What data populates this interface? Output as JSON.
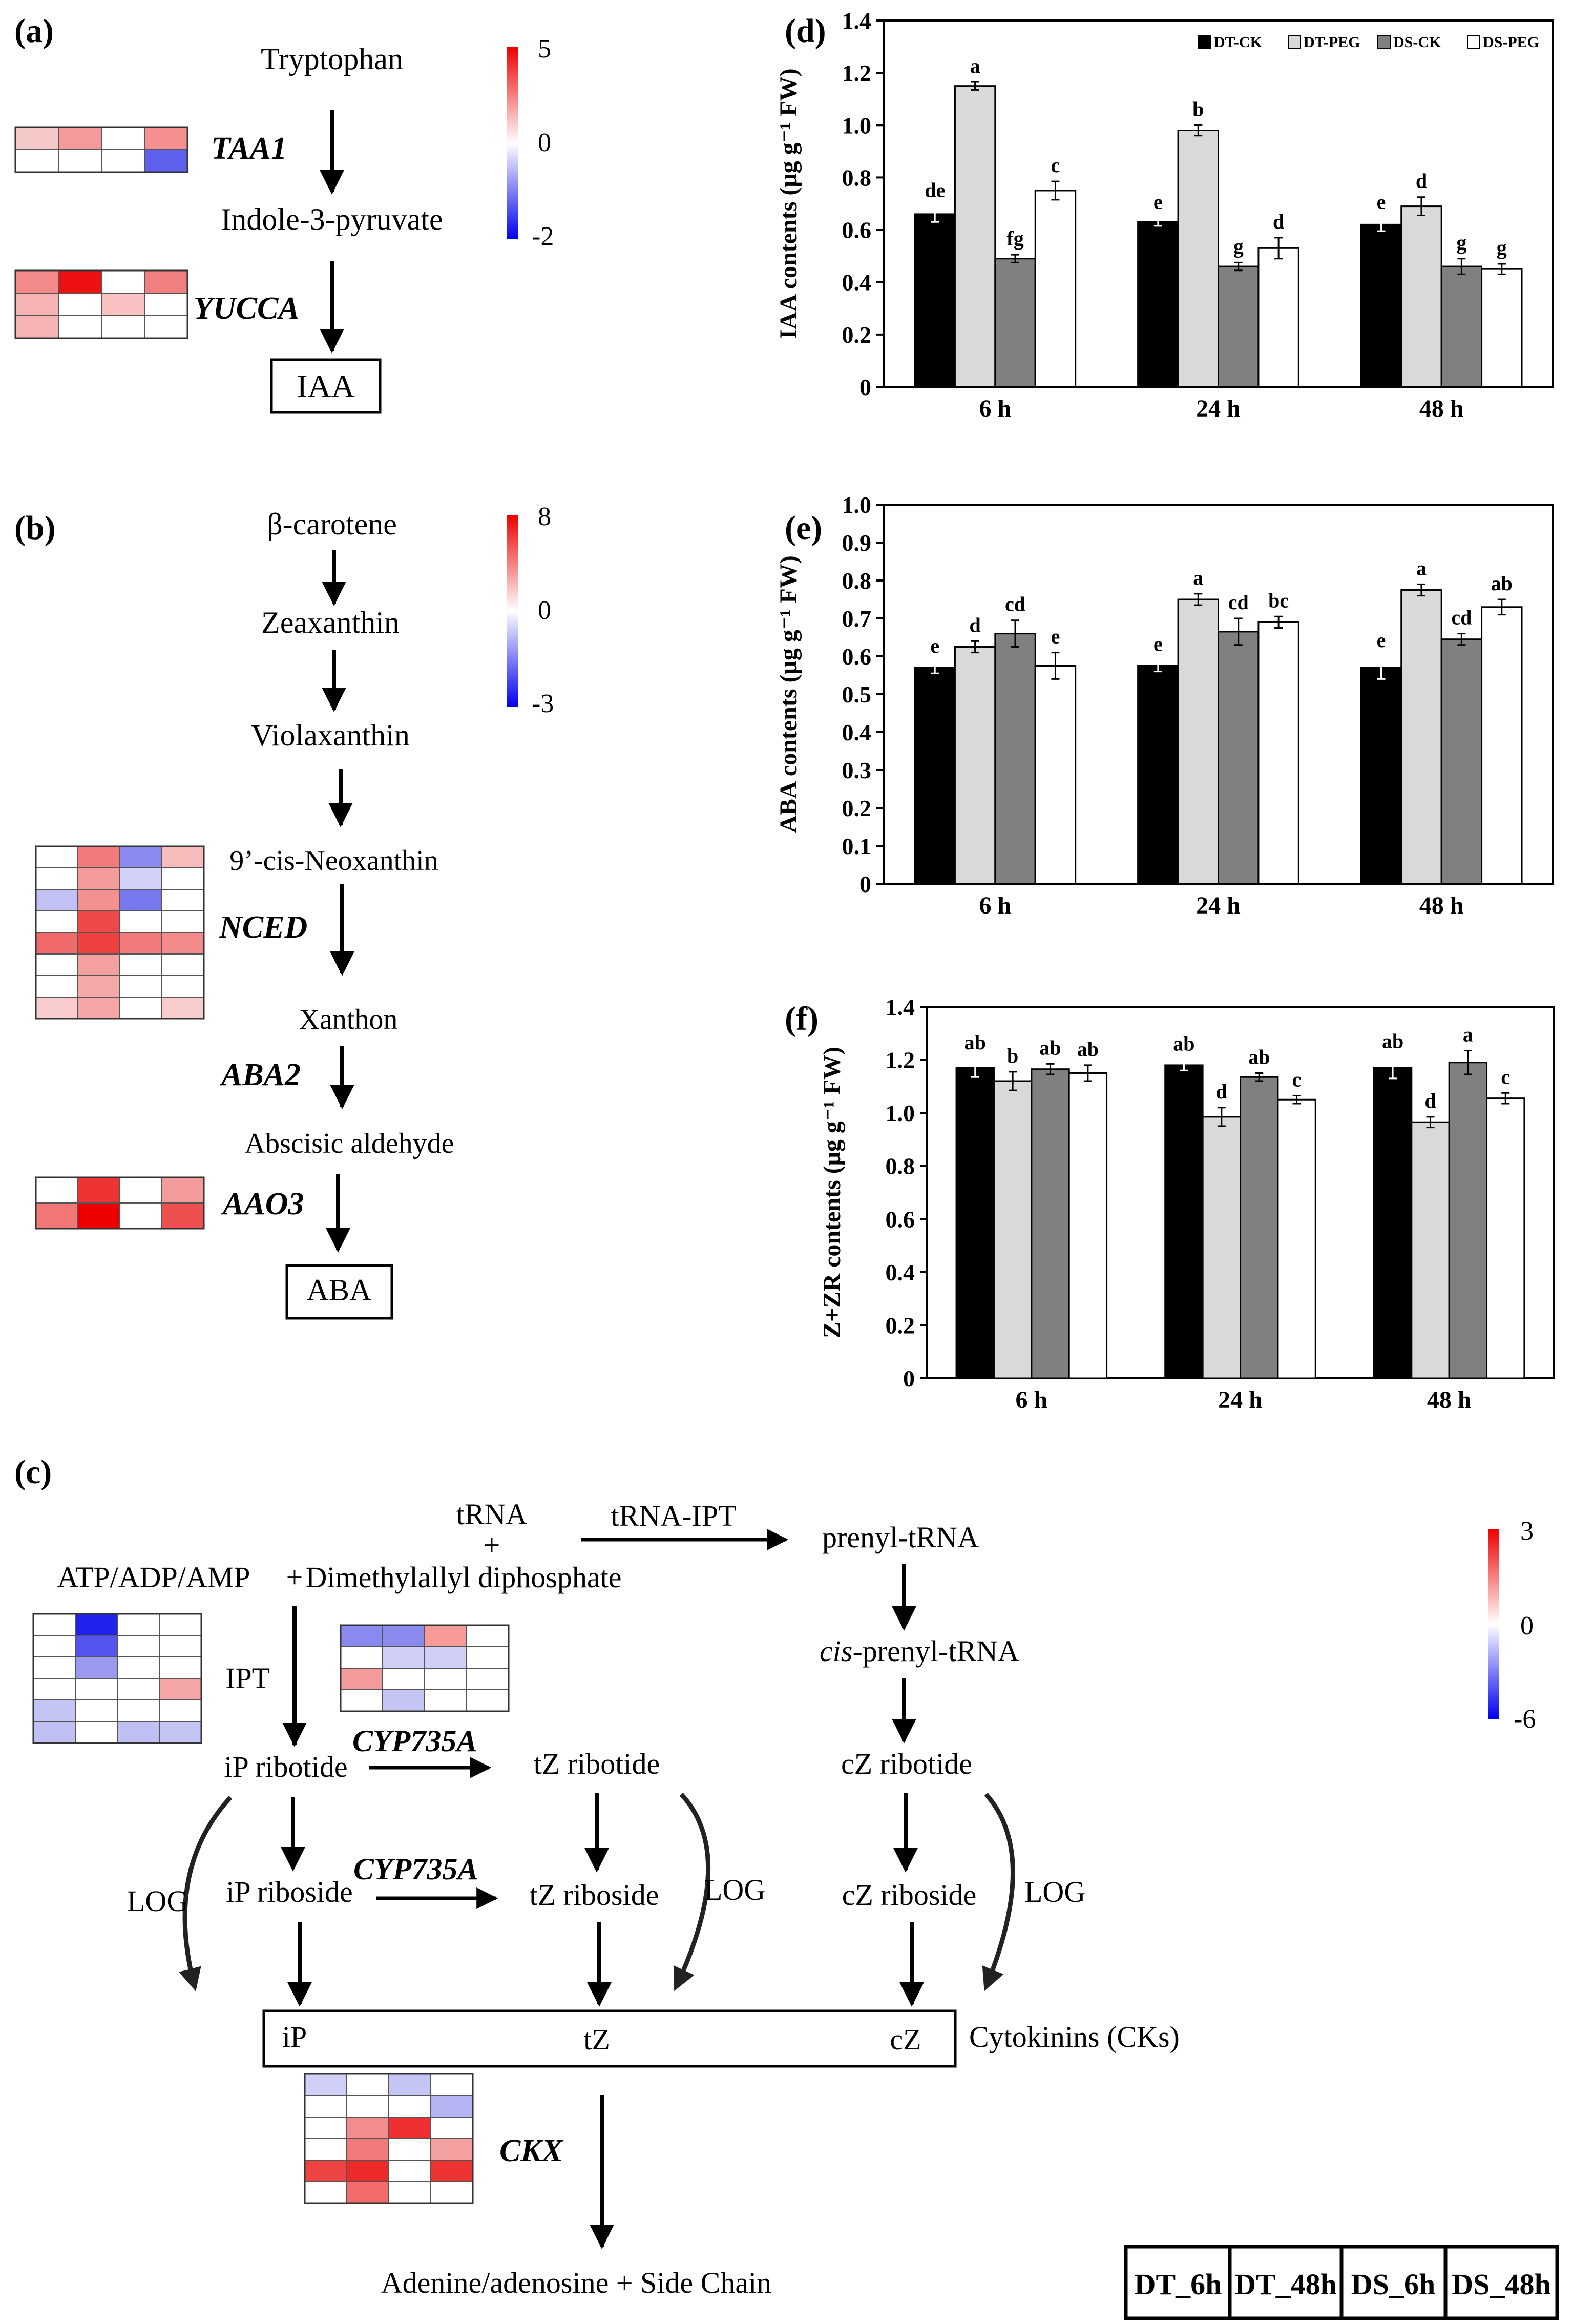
{
  "panels": {
    "a": {
      "label": "(a)",
      "nodes": [
        "Tryptophan",
        "Indole-3-pyruvate",
        "IAA"
      ],
      "genes": [
        "TAA1",
        "YUCCA"
      ],
      "scale": {
        "max": "5",
        "mid": "0",
        "min": "-2"
      },
      "heatmaps": {
        "TAA1": [
          [
            "#f7c8c8",
            "#f49a9a",
            "#ffffff",
            "#f49090"
          ],
          [
            "#ffffff",
            "#ffffff",
            "#ffffff",
            "#6060ee"
          ]
        ],
        "YUCCA": [
          [
            "#f28a8a",
            "#ee1111",
            "#ffffff",
            "#f27f7f"
          ],
          [
            "#f6b3b3",
            "#ffffff",
            "#f8c2c2",
            "#ffffff"
          ],
          [
            "#f6b3b3",
            "#ffffff",
            "#ffffff",
            "#ffffff"
          ]
        ]
      }
    },
    "b": {
      "label": "(b)",
      "nodes": [
        "β-carotene",
        "Zeaxanthin",
        "Violaxanthin",
        "9’-cis-Neoxanthin",
        "Xanthon",
        "Abscisic aldehyde",
        "ABA"
      ],
      "genes": [
        "NCED",
        "ABA2",
        "AAO3"
      ],
      "scale": {
        "max": "8",
        "mid": "0",
        "min": "-3"
      },
      "heatmaps": {
        "NCED": [
          [
            "#ffffff",
            "#f27a7a",
            "#8b8bef",
            "#f6bcbc"
          ],
          [
            "#ffffff",
            "#f59a9a",
            "#d2d2f8",
            "#ffffff"
          ],
          [
            "#c1c1f5",
            "#f39090",
            "#7777ee",
            "#ffffff"
          ],
          [
            "#ffffff",
            "#ee4a4a",
            "#ffffff",
            "#ffffff"
          ],
          [
            "#f06a6a",
            "#ee4040",
            "#f27a7a",
            "#f28a8a"
          ],
          [
            "#ffffff",
            "#f4a0a0",
            "#ffffff",
            "#ffffff"
          ],
          [
            "#ffffff",
            "#f4a8a8",
            "#ffffff",
            "#ffffff"
          ],
          [
            "#f8cccc",
            "#f5a5a5",
            "#ffffff",
            "#f8cccc"
          ]
        ],
        "AAO3": [
          [
            "#ffffff",
            "#ee3333",
            "#ffffff",
            "#f49c9c"
          ],
          [
            "#f27777",
            "#ee0000",
            "#ffffff",
            "#ee5050"
          ]
        ]
      }
    },
    "c": {
      "label": "(c)",
      "nodes": {
        "trna": "tRNA",
        "plus": "+",
        "dmapp": "Dimethylallyl diphosphate",
        "atp": "ATP/ADP/AMP",
        "plus2": "+",
        "trna_ipt": "tRNA-IPT",
        "prenyl": "prenyl-tRNA",
        "cis_prefix": "cis",
        "cis_rest": "-prenyl-tRNA",
        "ip_ribotide": "iP ribotide",
        "tz_ribotide": "tZ ribotide",
        "cz_ribotide": "cZ ribotide",
        "ip_riboside": "iP riboside",
        "tz_riboside": "tZ riboside",
        "cz_riboside": "cZ riboside",
        "ip": "iP",
        "tz": "tZ",
        "cz": "cZ",
        "cks": "Cytokinins (CKs)",
        "adenine": "Adenine/adenosine + Side Chain"
      },
      "genes": {
        "ipt": "IPT",
        "cyp1": "CYP735A",
        "cyp2": "CYP735A",
        "log": "LOG",
        "ckx": "CKX"
      },
      "scale": {
        "max": "3",
        "mid": "0",
        "min": "-6"
      },
      "legend_cols": [
        "DT_6h",
        "DT_48h",
        "DS_6h",
        "DS_48h"
      ],
      "heatmaps": {
        "IPT": [
          [
            "#ffffff",
            "#2222ee",
            "#ffffff",
            "#ffffff"
          ],
          [
            "#ffffff",
            "#5555ee",
            "#ffffff",
            "#ffffff"
          ],
          [
            "#ffffff",
            "#9a9af0",
            "#ffffff",
            "#ffffff"
          ],
          [
            "#ffffff",
            "#ffffff",
            "#ffffff",
            "#f4a5a5"
          ],
          [
            "#c5c5f5",
            "#ffffff",
            "#ffffff",
            "#ffffff"
          ],
          [
            "#c0c0f4",
            "#ffffff",
            "#c0c0f4",
            "#c5c5f5"
          ]
        ],
        "CYP735A": [
          [
            "#8a8aee",
            "#8a8aee",
            "#f59999",
            "#ffffff"
          ],
          [
            "#ffffff",
            "#cfcff7",
            "#cfcff7",
            "#ffffff"
          ],
          [
            "#f49c9c",
            "#ffffff",
            "#ffffff",
            "#ffffff"
          ],
          [
            "#ffffff",
            "#c5c5f5",
            "#ffffff",
            "#ffffff"
          ]
        ],
        "CKX": [
          [
            "#cfcff7",
            "#ffffff",
            "#c5c5f5",
            "#ffffff"
          ],
          [
            "#ffffff",
            "#ffffff",
            "#ffffff",
            "#b5b5f3"
          ],
          [
            "#ffffff",
            "#f38c8c",
            "#ee3030",
            "#ffffff"
          ],
          [
            "#ffffff",
            "#f27a7a",
            "#ffffff",
            "#f5a0a0"
          ],
          [
            "#ee4444",
            "#ee2a2a",
            "#ffffff",
            "#ee3333"
          ],
          [
            "#ffffff",
            "#f26a6a",
            "#ffffff",
            "#ffffff"
          ]
        ]
      }
    }
  },
  "chart_data": [
    {
      "panel": "(d)",
      "type": "bar",
      "categories": [
        "6 h",
        "24 h",
        "48 h"
      ],
      "series": [
        {
          "name": "DT-CK",
          "color": "#000000",
          "values": [
            0.66,
            0.63,
            0.62
          ],
          "errors": [
            0.03,
            0.015,
            0.025
          ],
          "labels": [
            "de",
            "e",
            "e"
          ]
        },
        {
          "name": "DT-PEG",
          "color": "#d9d9d9",
          "values": [
            1.15,
            0.98,
            0.69
          ],
          "errors": [
            0.015,
            0.02,
            0.035
          ],
          "labels": [
            "a",
            "b",
            "d"
          ]
        },
        {
          "name": "DS-CK",
          "color": "#808080",
          "values": [
            0.49,
            0.46,
            0.46
          ],
          "errors": [
            0.015,
            0.015,
            0.03
          ],
          "labels": [
            "fg",
            "g",
            "g"
          ]
        },
        {
          "name": "DS-PEG",
          "color": "#ffffff",
          "values": [
            0.75,
            0.53,
            0.45
          ],
          "errors": [
            0.035,
            0.04,
            0.02
          ],
          "labels": [
            "c",
            "d",
            "g"
          ]
        }
      ],
      "ylabel": "IAA contents (μg g⁻¹ FW)",
      "ylim": [
        0,
        1.4
      ],
      "yticks": [
        "0",
        "0.2",
        "0.4",
        "0.6",
        "0.8",
        "1.0",
        "1.2",
        "1.4"
      ],
      "legend": "top-right"
    },
    {
      "panel": "(e)",
      "type": "bar",
      "categories": [
        "6 h",
        "24 h",
        "48 h"
      ],
      "series": [
        {
          "name": "DT-CK",
          "color": "#000000",
          "values": [
            0.57,
            0.575,
            0.57
          ],
          "errors": [
            0.015,
            0.015,
            0.03
          ],
          "labels": [
            "e",
            "e",
            "e"
          ]
        },
        {
          "name": "DT-PEG",
          "color": "#d9d9d9",
          "values": [
            0.625,
            0.75,
            0.775
          ],
          "errors": [
            0.015,
            0.015,
            0.015
          ],
          "labels": [
            "d",
            "a",
            "a"
          ]
        },
        {
          "name": "DS-CK",
          "color": "#808080",
          "values": [
            0.66,
            0.665,
            0.645
          ],
          "errors": [
            0.035,
            0.035,
            0.015
          ],
          "labels": [
            "cd",
            "cd",
            "cd"
          ]
        },
        {
          "name": "DS-PEG",
          "color": "#ffffff",
          "values": [
            0.575,
            0.69,
            0.73
          ],
          "errors": [
            0.035,
            0.015,
            0.02
          ],
          "labels": [
            "e",
            "bc",
            "ab"
          ]
        }
      ],
      "ylabel": "ABA contents (μg g⁻¹ FW)",
      "ylim": [
        0,
        1.0
      ],
      "yticks": [
        "0",
        "0.1",
        "0.2",
        "0.3",
        "0.4",
        "0.5",
        "0.6",
        "0.7",
        "0.8",
        "0.9",
        "1.0"
      ]
    },
    {
      "panel": "(f)",
      "type": "bar",
      "categories": [
        "6 h",
        "24 h",
        "48 h"
      ],
      "series": [
        {
          "name": "DT-CK",
          "color": "#000000",
          "values": [
            1.17,
            1.18,
            1.17
          ],
          "errors": [
            0.035,
            0.02,
            0.04
          ],
          "labels": [
            "ab",
            "ab",
            "ab"
          ]
        },
        {
          "name": "DT-PEG",
          "color": "#d9d9d9",
          "values": [
            1.12,
            0.985,
            0.965
          ],
          "errors": [
            0.035,
            0.035,
            0.02
          ],
          "labels": [
            "b",
            "d",
            "d"
          ]
        },
        {
          "name": "DS-CK",
          "color": "#808080",
          "values": [
            1.165,
            1.135,
            1.19
          ],
          "errors": [
            0.02,
            0.015,
            0.045
          ],
          "labels": [
            "ab",
            "ab",
            "a"
          ]
        },
        {
          "name": "DS-PEG",
          "color": "#ffffff",
          "values": [
            1.15,
            1.05,
            1.055
          ],
          "errors": [
            0.03,
            0.015,
            0.02
          ],
          "labels": [
            "ab",
            "c",
            "c"
          ]
        }
      ],
      "ylabel": "Z+ZR contents (μg g⁻¹ FW)",
      "ylim": [
        0,
        1.4
      ],
      "yticks": [
        "0",
        "0.2",
        "0.4",
        "0.6",
        "0.8",
        "1.0",
        "1.2",
        "1.4"
      ]
    }
  ]
}
